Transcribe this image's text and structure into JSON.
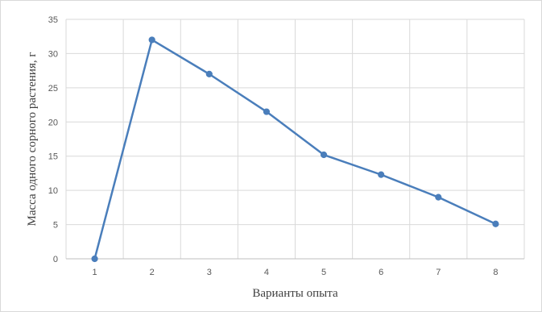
{
  "chart_data": {
    "type": "line",
    "title": "",
    "xlabel": "Варианты опыта",
    "ylabel": "Масса одного сорного растения, г",
    "categories": [
      "1",
      "2",
      "3",
      "4",
      "5",
      "6",
      "7",
      "8"
    ],
    "series": [
      {
        "values": [
          0,
          32,
          27,
          21.5,
          15.2,
          12.3,
          9,
          5.1
        ]
      }
    ],
    "ylim": [
      0,
      35
    ],
    "yticks": [
      "0",
      "5",
      "10",
      "15",
      "20",
      "25",
      "30",
      "35"
    ],
    "grid": true,
    "legend": "none",
    "colors": {
      "series": "#4a7ebb",
      "grid": "#d9d9d9",
      "axis": "#bfbfbf"
    }
  }
}
